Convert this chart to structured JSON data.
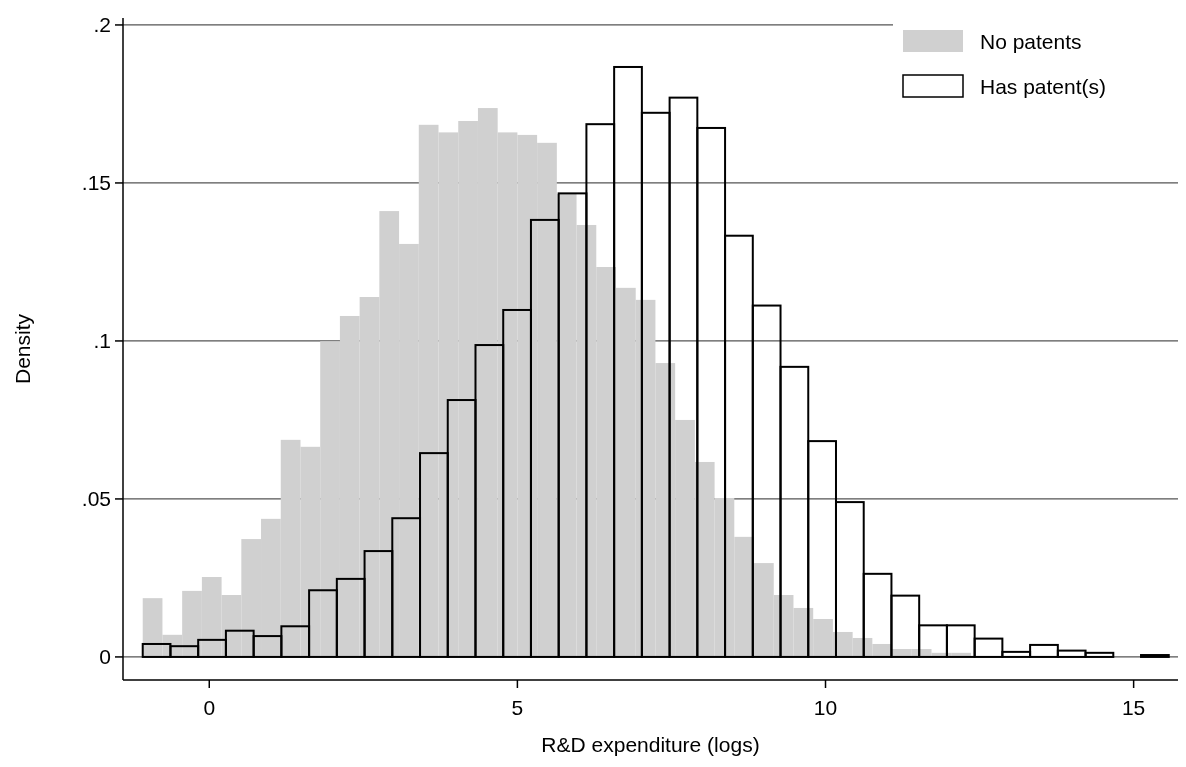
{
  "chart_data": {
    "type": "bar",
    "xlabel": "R&D expenditure (logs)",
    "ylabel": "Density",
    "xlim": [
      -1.4,
      15.72
    ],
    "xticks": [
      0,
      5,
      10,
      15
    ],
    "ylim": [
      -0.0073,
      0.2022
    ],
    "yticks": [
      {
        "value": 0,
        "label": "0"
      },
      {
        "value": 0.05,
        "label": ".05"
      },
      {
        "value": 0.1,
        "label": ".1"
      },
      {
        "value": 0.15,
        "label": ".15"
      },
      {
        "value": 0.2,
        "label": ".2"
      }
    ],
    "grid": "y",
    "legend": "top right",
    "series": [
      {
        "name": "No patents",
        "color": "#d0d0d0",
        "x": [
          -0.92,
          -0.6,
          -0.28,
          0.04,
          0.36,
          0.68,
          1,
          1.32,
          1.64,
          1.96,
          2.28,
          2.6,
          2.92,
          3.24,
          3.56,
          3.88,
          4.2,
          4.52,
          4.84,
          5.16,
          5.48,
          5.8,
          6.12,
          6.44,
          6.76,
          7.08,
          7.4,
          7.72,
          8.04,
          8.36,
          8.68,
          9,
          9.32,
          9.64,
          9.96,
          10.28,
          10.6,
          10.92,
          11.24,
          11.56,
          11.88,
          12.2,
          12.52,
          12.84,
          13.16,
          13.48,
          13.8,
          14.12,
          14.44,
          14.76,
          15.08,
          15.4
        ],
        "values": [
          0.0186,
          0.007,
          0.0209,
          0.0253,
          0.0196,
          0.0373,
          0.0437,
          0.0687,
          0.0665,
          0.0999,
          0.1079,
          0.1139,
          0.1411,
          0.1307,
          0.1684,
          0.166,
          0.1696,
          0.1737,
          0.166,
          0.1652,
          0.1627,
          0.1465,
          0.1367,
          0.1234,
          0.1168,
          0.113,
          0.093,
          0.075,
          0.0617,
          0.0503,
          0.038,
          0.0297,
          0.0196,
          0.0155,
          0.012,
          0.0079,
          0.006,
          0.0041,
          0.0025,
          0.0025,
          0.0013,
          0.0013,
          null,
          null,
          0.0003,
          0.0003,
          0,
          0,
          0,
          0,
          0,
          0
        ]
      },
      {
        "name": "Has patent(s)",
        "color": "#000000",
        "x": [
          -0.855,
          -0.405,
          0.045,
          0.495,
          0.945,
          1.395,
          1.845,
          2.295,
          2.745,
          3.195,
          3.645,
          4.095,
          4.545,
          4.995,
          5.445,
          5.895,
          6.345,
          6.795,
          7.245,
          7.695,
          8.145,
          8.595,
          9.045,
          9.495,
          9.945,
          10.395,
          10.845,
          11.295,
          11.745,
          12.195,
          12.645,
          13.095,
          13.545,
          13.995,
          14.445,
          14.895,
          15.345
        ],
        "values": [
          0.0041,
          0.0034,
          0.0054,
          0.0083,
          0.0066,
          0.0097,
          0.0211,
          0.0247,
          0.0335,
          0.0439,
          0.0645,
          0.0813,
          0.0987,
          0.1098,
          0.1383,
          0.1467,
          0.1686,
          0.1867,
          0.1722,
          0.177,
          0.1674,
          0.1333,
          0.1112,
          0.0918,
          0.0683,
          0.049,
          0.0263,
          0.0194,
          0.01,
          0.01,
          0.0058,
          0.0016,
          0.0038,
          0.002,
          0.0013,
          0,
          0.0006
        ]
      }
    ]
  }
}
